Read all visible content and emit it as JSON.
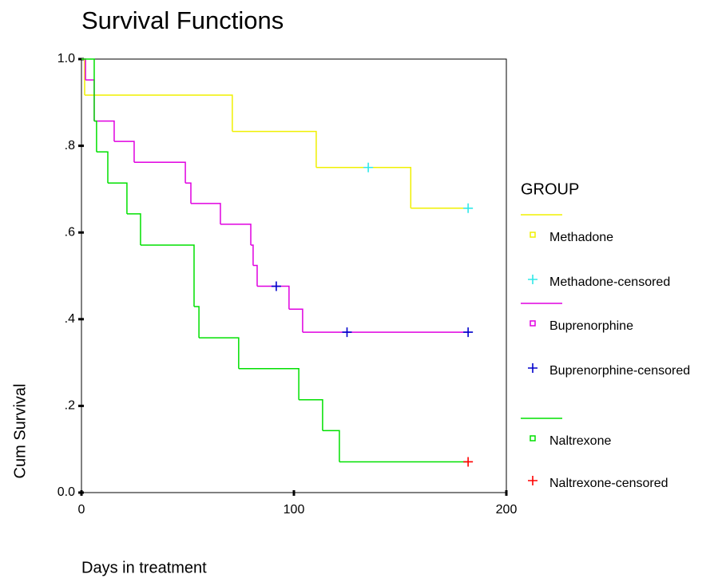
{
  "chart_data": {
    "type": "step",
    "title": "Survival Functions",
    "x_label": "Days in treatment",
    "y_label": "Cum Survival",
    "legend_title": "GROUP",
    "xlim": [
      0,
      200
    ],
    "xticks": [
      0,
      100,
      200
    ],
    "ylim": [
      0,
      1
    ],
    "yticks": [
      {
        "value": 0,
        "label": "0.0"
      },
      {
        "value": 0.2,
        "label": ".2"
      },
      {
        "value": 0.4,
        "label": ".4"
      },
      {
        "value": 0.6,
        "label": ".6"
      },
      {
        "value": 0.8,
        "label": ".8"
      },
      {
        "value": 1,
        "label": "1.0"
      }
    ],
    "series": [
      {
        "name": "Methadone",
        "color": "#f0f000",
        "marker": "line",
        "x": [
          0,
          1.5,
          71,
          110.5,
          155,
          182
        ],
        "values": [
          1,
          0.917,
          0.833,
          0.75,
          0.656,
          0.656
        ]
      },
      {
        "name": "Methadone-censored",
        "color": "#30e8e8",
        "marker": "plus",
        "x": [
          135,
          182
        ],
        "values": [
          0.75,
          0.656
        ]
      },
      {
        "name": "Buprenorphine",
        "color": "#e000e0",
        "marker": "line",
        "x": [
          0,
          1.9,
          6,
          15.4,
          24.8,
          48.9,
          51.5,
          65.4,
          79.7,
          80.8,
          82.7,
          97.7,
          104.1,
          182
        ],
        "values": [
          1,
          0.952,
          0.857,
          0.81,
          0.762,
          0.714,
          0.667,
          0.619,
          0.571,
          0.524,
          0.476,
          0.423,
          0.37,
          0.37
        ]
      },
      {
        "name": "Buprenorphine-censored",
        "color": "#0000cc",
        "marker": "plus",
        "x": [
          91.7,
          125,
          182
        ],
        "values": [
          0.476,
          0.37,
          0.37
        ]
      },
      {
        "name": "Naltrexone",
        "color": "#00e000",
        "marker": "line",
        "x": [
          0,
          6,
          7.1,
          12.4,
          21.4,
          27.8,
          53,
          55.3,
          74,
          102.3,
          113.5,
          121.4,
          182
        ],
        "values": [
          1,
          0.857,
          0.786,
          0.714,
          0.643,
          0.571,
          0.429,
          0.357,
          0.286,
          0.214,
          0.143,
          0.071,
          0.071
        ]
      },
      {
        "name": "Naltrexone-censored",
        "color": "#ff0000",
        "marker": "plus",
        "x": [
          182
        ],
        "values": [
          0.071
        ]
      }
    ]
  }
}
